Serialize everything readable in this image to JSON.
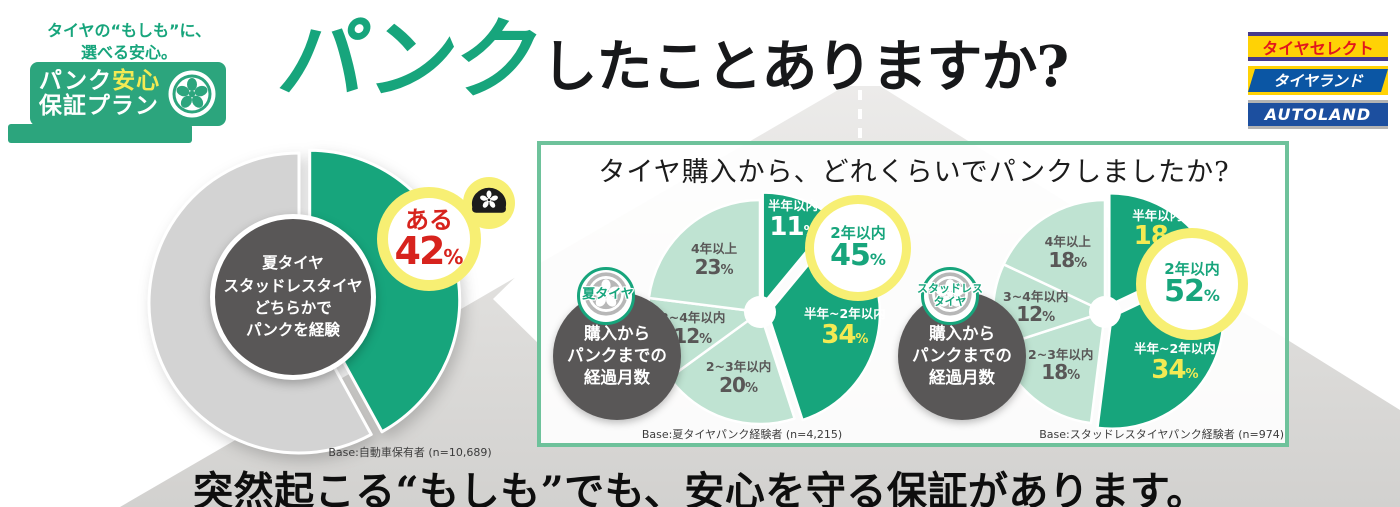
{
  "colors": {
    "accent_green": "#17a57c",
    "badge_green": "#2ca57d",
    "light_green": "#bfe3d2",
    "panel_border_green": "#6ec29b",
    "gray_slice": "#d3d3d3",
    "dark_circle_gray": "#595757",
    "highlight_yellow": "#f7ef73",
    "number_yellow": "#f3ea53",
    "red": "#d7231d",
    "wheel_gray": "#b7b7b7",
    "tire_black": "#1c1c1c"
  },
  "logo": {
    "tagline_line1": "タイヤの“もしも”に、",
    "tagline_line2": "選べる安心。",
    "badge_word1": "パンク",
    "badge_word2": "安心",
    "badge_line2": "保証プラン"
  },
  "header": {
    "title_accent": "パンク",
    "title_rest": "したことありますか?"
  },
  "partner_logos": [
    {
      "name": "タイヤセレクト"
    },
    {
      "name": "タイヤランド"
    },
    {
      "name": "AUTOLAND"
    }
  ],
  "panel": {
    "question": "タイヤ購入から、どれくらいでパンクしましたか?"
  },
  "footer": {
    "headline": "突然起こる“もしも”でも、安心を守る保証があります。"
  },
  "chart_data": [
    {
      "name": "puncture-experience-donut",
      "type": "donut",
      "center_lines": [
        "夏タイヤ",
        "スタッドレスタイヤ",
        "どちらかで",
        "パンクを経験"
      ],
      "slices": [
        {
          "label": "ある",
          "value": 42,
          "color": "#17a57c",
          "emphasis": true,
          "exploded": true,
          "hide_label": true
        },
        {
          "label": "",
          "value": 58,
          "color": "#d3d3d3"
        }
      ],
      "callout": {
        "label": "ある",
        "value": "42",
        "unit": "%"
      },
      "base_note": "Base:自動車保有者 (n=10,689)"
    },
    {
      "name": "summer-tire-pie",
      "type": "pie",
      "badge_lines": [
        "夏タイヤ"
      ],
      "center_lines": [
        "購入から",
        "パンクまでの",
        "経過月数"
      ],
      "hole": 16,
      "slices": [
        {
          "label": "半年以内",
          "value": 11,
          "color": "#17a57c",
          "emphasis": true,
          "exploded": true,
          "label_color": "#ffffff",
          "value_color": "#ffffff"
        },
        {
          "label": "半年~2年以内",
          "value": 34,
          "color": "#17a57c",
          "emphasis": true,
          "exploded": true,
          "label_color": "#ffffff",
          "value_color": "#f3ea53"
        },
        {
          "label": "2~3年以内",
          "value": 20,
          "color": "#bfe3d2",
          "label_color": "#595757",
          "value_color": "#595757"
        },
        {
          "label": "3~4年以内",
          "value": 12,
          "color": "#bfe3d2",
          "label_color": "#595757",
          "value_color": "#595757"
        },
        {
          "label": "4年以上",
          "value": 23,
          "color": "#bfe3d2",
          "label_color": "#595757",
          "value_color": "#595757"
        }
      ],
      "callout": {
        "label": "2年以内",
        "value": "45",
        "unit": "%"
      },
      "base_note": "Base:夏タイヤパンク経験者 (n=4,215)"
    },
    {
      "name": "studless-tire-pie",
      "type": "pie",
      "badge_lines": [
        "スタッドレス",
        "タイヤ"
      ],
      "center_lines": [
        "購入から",
        "パンクまでの",
        "経過月数"
      ],
      "hole": 16,
      "slices": [
        {
          "label": "半年以内",
          "value": 18,
          "color": "#17a57c",
          "emphasis": true,
          "exploded": true,
          "label_color": "#ffffff",
          "value_color": "#f3ea53"
        },
        {
          "label": "半年~2年以内",
          "value": 34,
          "color": "#17a57c",
          "emphasis": true,
          "exploded": true,
          "label_color": "#ffffff",
          "value_color": "#f3ea53"
        },
        {
          "label": "2~3年以内",
          "value": 18,
          "color": "#bfe3d2",
          "label_color": "#595757",
          "value_color": "#595757"
        },
        {
          "label": "3~4年以内",
          "value": 12,
          "color": "#bfe3d2",
          "label_color": "#595757",
          "value_color": "#595757"
        },
        {
          "label": "4年以上",
          "value": 18,
          "color": "#bfe3d2",
          "label_color": "#595757",
          "value_color": "#595757"
        }
      ],
      "callout": {
        "label": "2年以内",
        "value": "52",
        "unit": "%"
      },
      "base_note": "Base:スタッドレスタイヤパンク経験者 (n=974)"
    }
  ]
}
